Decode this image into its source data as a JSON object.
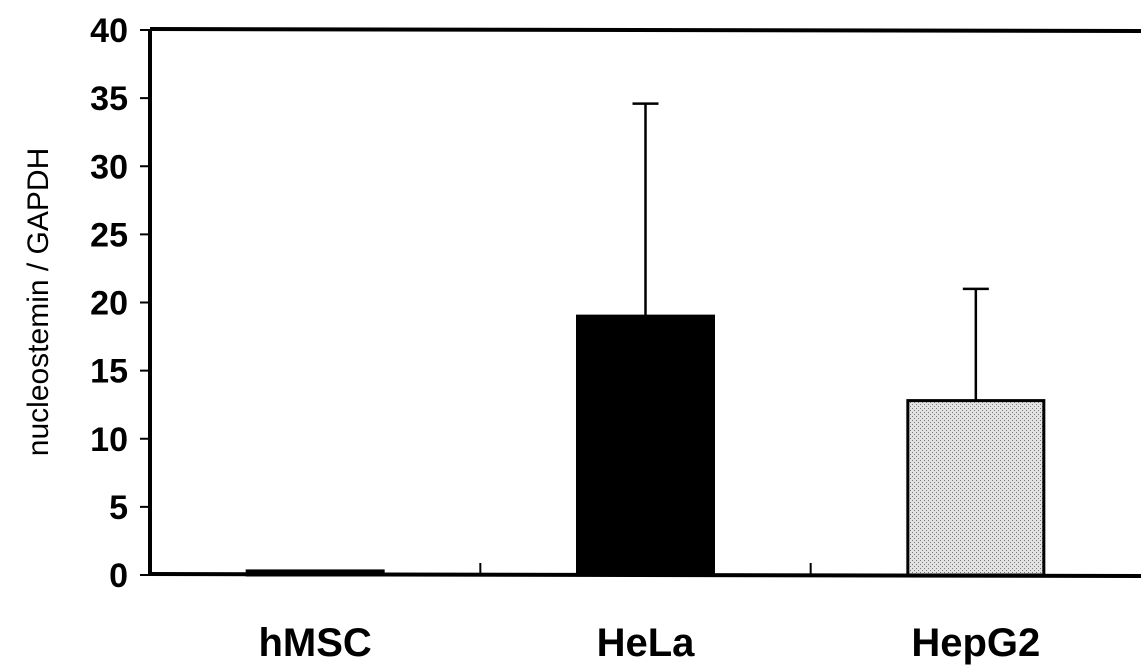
{
  "chart_data": {
    "type": "bar",
    "title": "",
    "xlabel": "",
    "ylabel": "nucleostemin / GAPDH",
    "categories": [
      "hMSC",
      "HeLa",
      "HepG2"
    ],
    "values": [
      0.3,
      19.0,
      12.8
    ],
    "error_upper": [
      0.0,
      34.6,
      21.0
    ],
    "ylim": [
      0,
      40
    ],
    "yticks": [
      "0",
      "5",
      "10",
      "15",
      "20",
      "25",
      "30",
      "35",
      "40"
    ],
    "bar_fills": [
      "black",
      "black",
      "light-gray-stipple"
    ],
    "colors": {
      "dark": "#000000",
      "light": "#d2d2d2"
    },
    "grid": false,
    "legend": "none"
  }
}
